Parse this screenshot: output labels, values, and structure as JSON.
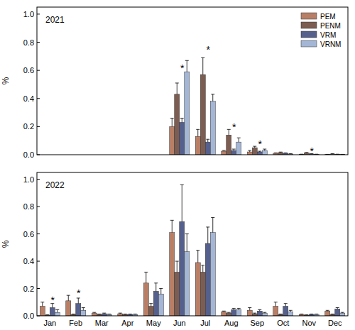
{
  "chart_data": [
    {
      "type": "bar",
      "title": "2021",
      "y_label": "%",
      "categories": [
        "Jan",
        "Feb",
        "Mar",
        "Apr",
        "May",
        "Jun",
        "Jul",
        "Aug",
        "Sep",
        "Oct",
        "Nov",
        "Dec"
      ],
      "ylim": [
        0,
        1.05
      ],
      "yticks": [
        {
          "value": 0,
          "label": "0.0"
        },
        {
          "value": 0.2,
          "label": "0.2"
        },
        {
          "value": 0.4,
          "label": "0.4"
        },
        {
          "value": 0.6,
          "label": "0.6"
        },
        {
          "value": 0.8,
          "label": "0.8"
        },
        {
          "value": 1,
          "label": "1.0"
        }
      ],
      "tick_labels": "y",
      "legend": "upper right",
      "series": [
        {
          "name": "PEM",
          "color": "#b97f66",
          "values": [
            null,
            null,
            null,
            null,
            null,
            0.2,
            0.13,
            0.025,
            0.02,
            0.01,
            0.003,
            0.002
          ],
          "errors": [
            null,
            null,
            null,
            null,
            null,
            0.06,
            0.05,
            0.005,
            0.01,
            0.003,
            0.001,
            0.001
          ]
        },
        {
          "name": "PENM",
          "color": "#7d5d51",
          "values": [
            null,
            null,
            null,
            null,
            null,
            0.43,
            0.57,
            0.14,
            0.05,
            0.015,
            0.012,
            0.005
          ],
          "errors": [
            null,
            null,
            null,
            null,
            null,
            0.08,
            0.12,
            0.04,
            0.01,
            0.004,
            0.004,
            0.002
          ]
        },
        {
          "name": "VRM",
          "color": "#56608c",
          "values": [
            null,
            null,
            null,
            null,
            null,
            0.23,
            0.09,
            0.03,
            0.02,
            0.01,
            0.005,
            0.003
          ],
          "errors": [
            null,
            null,
            null,
            null,
            null,
            0.03,
            0.02,
            0.01,
            0.005,
            0.003,
            0.002,
            0.001
          ]
        },
        {
          "name": "VRNM",
          "color": "#a4b6d6",
          "values": [
            null,
            null,
            null,
            null,
            null,
            0.59,
            0.38,
            0.09,
            0.03,
            0.005,
            0.003,
            0.002
          ],
          "errors": [
            null,
            null,
            null,
            null,
            null,
            0.08,
            0.05,
            0.03,
            0.01,
            0.002,
            0.001,
            0.001
          ]
        }
      ],
      "annotations": [
        {
          "text": "*",
          "x": "Jun",
          "y": 0.62
        },
        {
          "text": "*",
          "x": "Jul",
          "y": 0.75
        },
        {
          "text": "*",
          "x": "Aug",
          "y": 0.2
        },
        {
          "text": "*",
          "x": "Sep",
          "y": 0.08
        },
        {
          "text": "*",
          "x": "Nov",
          "y": 0.03
        }
      ]
    },
    {
      "type": "bar",
      "title": "2022",
      "y_label": "%",
      "categories": [
        "Jan",
        "Feb",
        "Mar",
        "Apr",
        "May",
        "Jun",
        "Jul",
        "Aug",
        "Sep",
        "Oct",
        "Nov",
        "Dec"
      ],
      "ylim": [
        0,
        1.05
      ],
      "yticks": [
        {
          "value": 0,
          "label": "0.0"
        },
        {
          "value": 0.2,
          "label": "0.2"
        },
        {
          "value": 0.4,
          "label": "0.4"
        },
        {
          "value": 0.6,
          "label": "0.6"
        },
        {
          "value": 0.8,
          "label": "0.8"
        },
        {
          "value": 1,
          "label": "1.0"
        }
      ],
      "series": [
        {
          "name": "PEM",
          "color": "#b97f66",
          "values": [
            0.07,
            0.11,
            0.02,
            0.015,
            0.24,
            0.61,
            0.39,
            0.03,
            0.04,
            0.07,
            0.01,
            0.035
          ],
          "errors": [
            0.03,
            0.04,
            0.005,
            0.005,
            0.08,
            0.09,
            0.09,
            0.005,
            0.02,
            0.03,
            0.003,
            0.005
          ]
        },
        {
          "name": "PENM",
          "color": "#7d5d51",
          "values": [
            0.005,
            0.01,
            0.01,
            0.01,
            0.07,
            0.32,
            0.32,
            0.02,
            0.015,
            0.01,
            0.005,
            0.01
          ],
          "errors": [
            0.002,
            0.003,
            0.003,
            0.003,
            0.02,
            0.08,
            0.05,
            0.005,
            0.005,
            0.003,
            0.002,
            0.003
          ]
        },
        {
          "name": "VRM",
          "color": "#56608c",
          "values": [
            0.06,
            0.09,
            0.015,
            0.01,
            0.18,
            0.69,
            0.53,
            0.045,
            0.035,
            0.07,
            0.01,
            0.05
          ],
          "errors": [
            0.03,
            0.04,
            0.005,
            0.003,
            0.06,
            0.27,
            0.12,
            0.01,
            0.01,
            0.02,
            0.003,
            0.01
          ]
        },
        {
          "name": "VRNM",
          "color": "#a4b6d6",
          "values": [
            0.025,
            0.04,
            0.01,
            0.01,
            0.16,
            0.47,
            0.61,
            0.045,
            0.02,
            0.03,
            0.01,
            0.02
          ],
          "errors": [
            0.02,
            0.02,
            0.003,
            0.003,
            0.04,
            0.13,
            0.11,
            0.01,
            0.005,
            0.01,
            0.003,
            0.005
          ]
        }
      ],
      "annotations": [
        {
          "text": "*",
          "x": "Jan",
          "y": 0.12
        },
        {
          "text": "*",
          "x": "Feb",
          "y": 0.17
        }
      ]
    }
  ]
}
